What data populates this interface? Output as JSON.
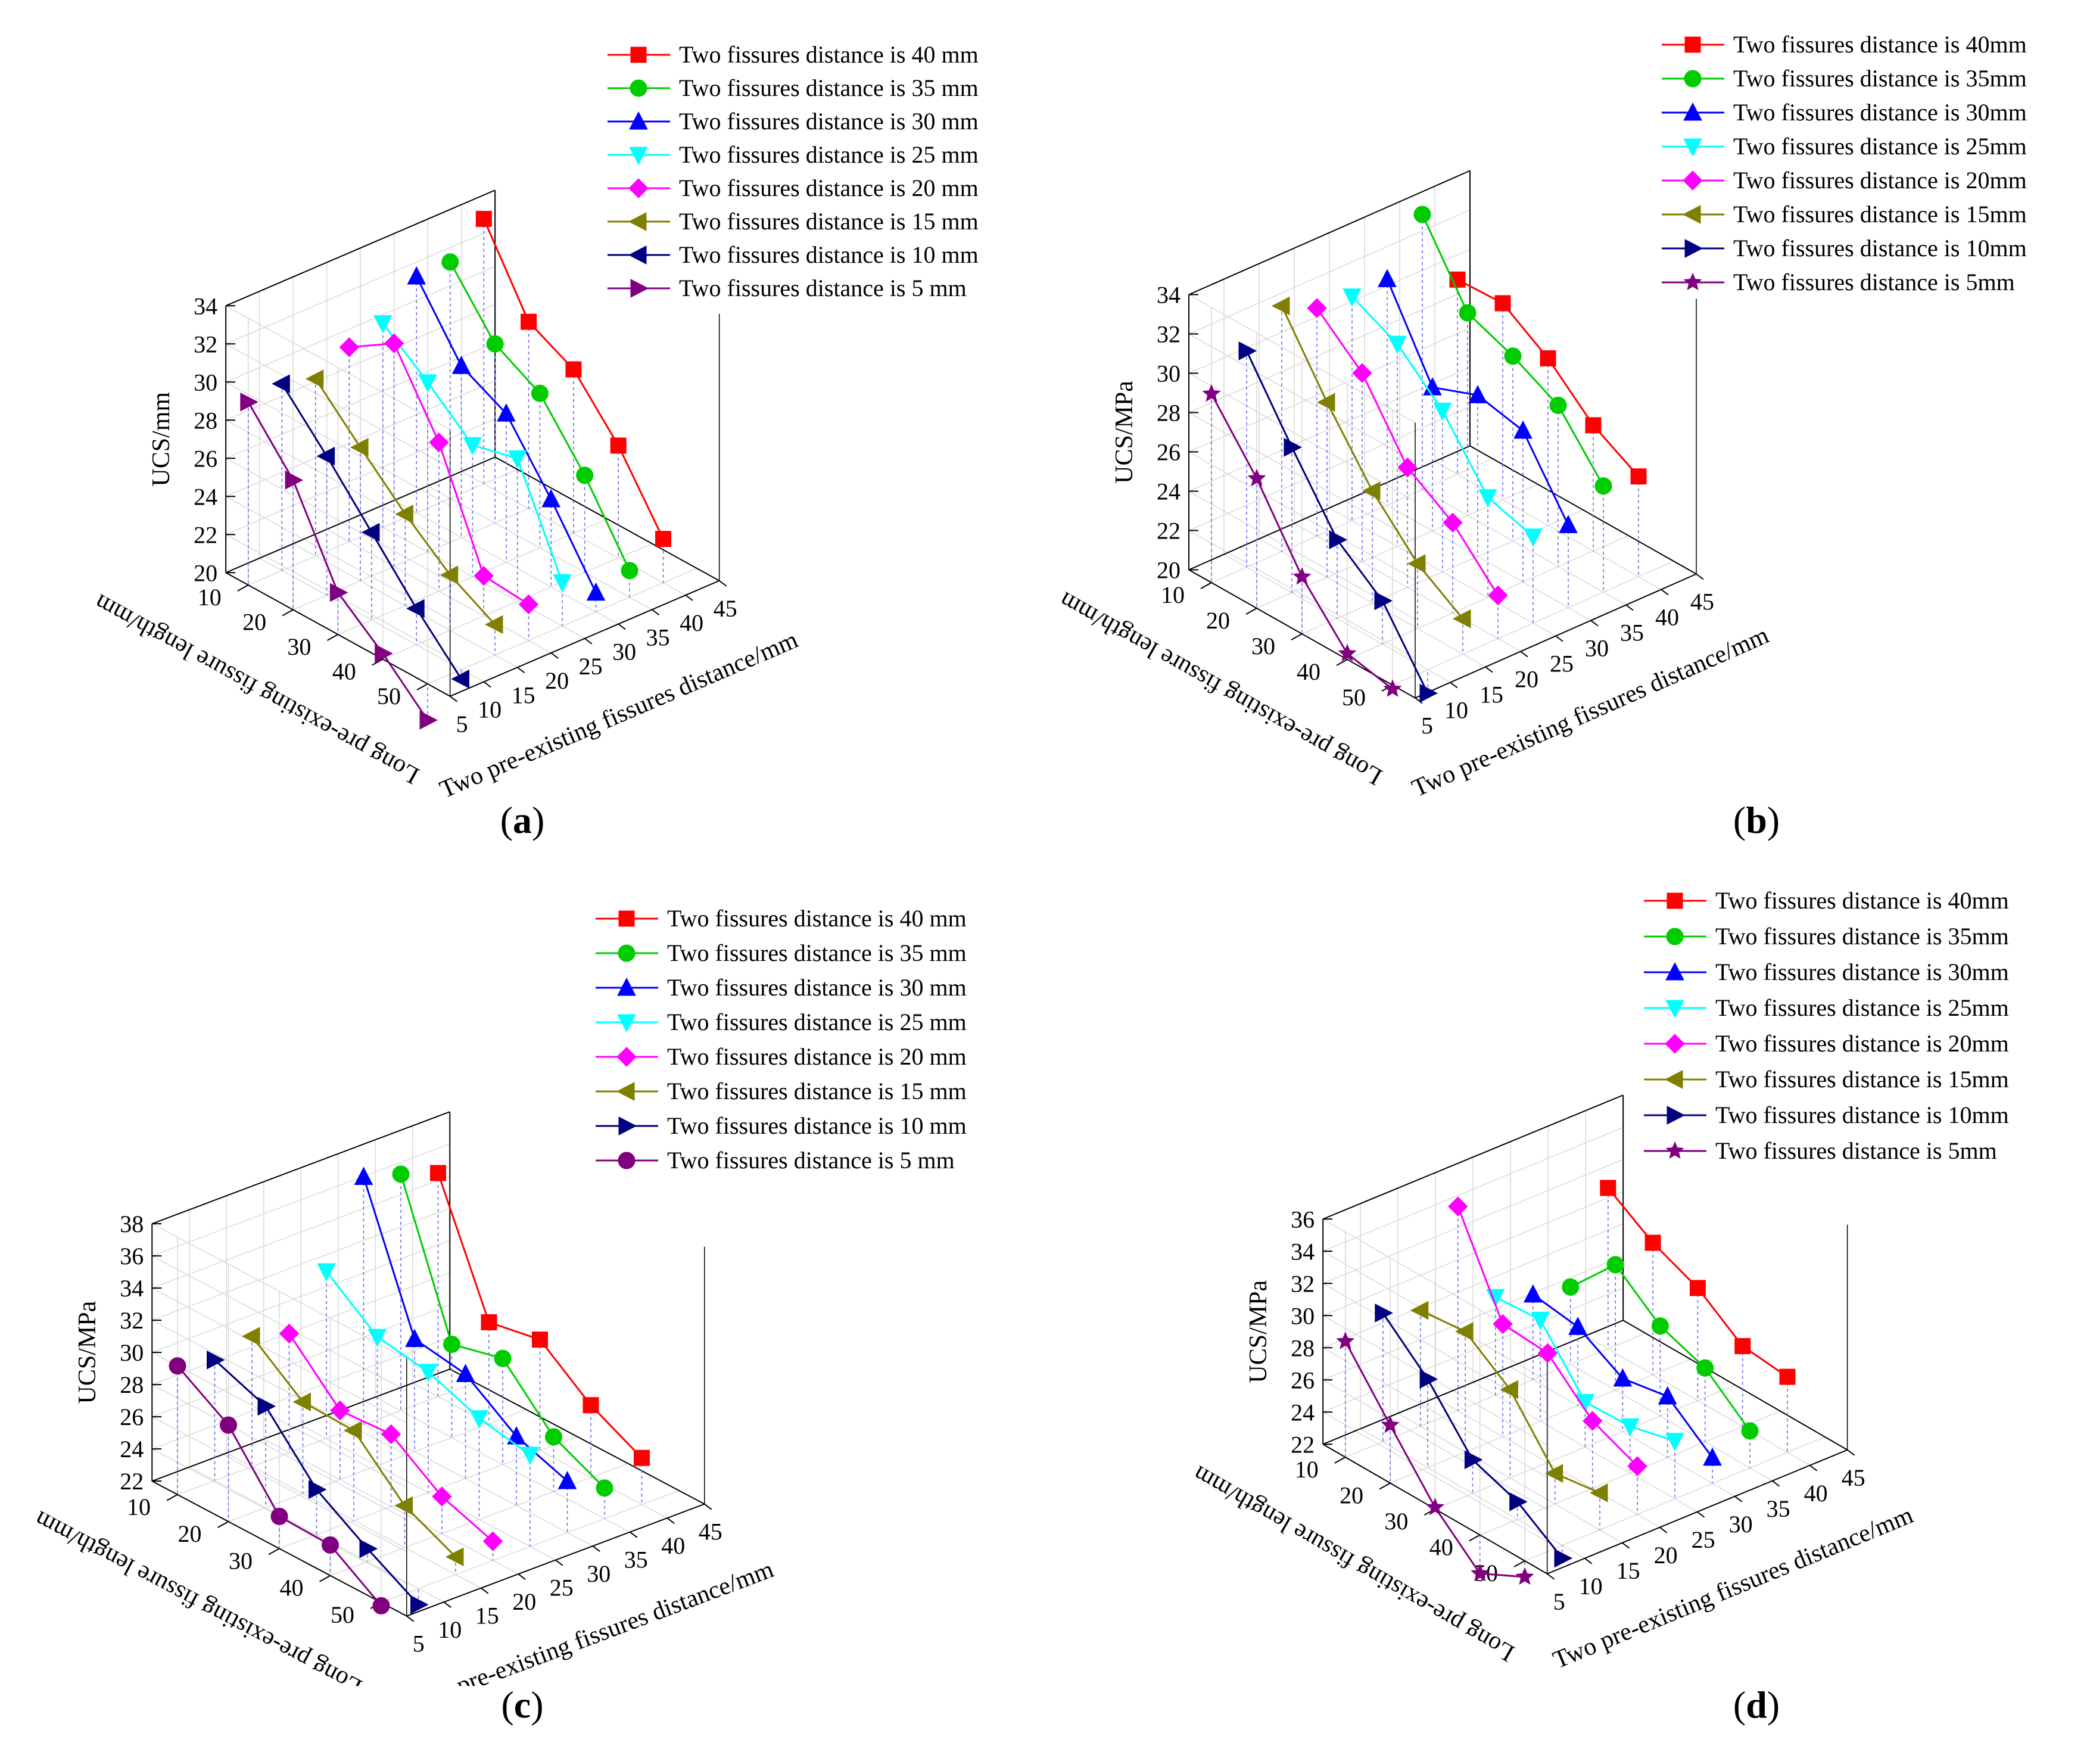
{
  "chart_data": [
    {
      "id": "a",
      "type": "line",
      "caption": "a",
      "zlabel": "UCS/mm",
      "ylabel": "Long pre-existing fissure length/mm",
      "xlabel": "Two pre-existing fissures distance/mm",
      "zlim": [
        20,
        34
      ],
      "zticks": [
        "20",
        "22",
        "24",
        "26",
        "28",
        "30",
        "32",
        "34"
      ],
      "yticks": [
        "10",
        "20",
        "30",
        "40",
        "50"
      ],
      "xticks": [
        "5",
        "10",
        "15",
        "20",
        "25",
        "30",
        "35",
        "40",
        "45"
      ],
      "lengths": [
        10,
        20,
        30,
        40,
        50
      ],
      "series": [
        {
          "name": "Two fissures distance is 40 mm",
          "distance": 40,
          "color": "#ff0000",
          "marker": "square",
          "values": [
            33.9,
            29.8,
            28.6,
            25.9,
            22.3
          ]
        },
        {
          "name": "Two fissures distance is 35 mm",
          "distance": 35,
          "color": "#00cc00",
          "marker": "circle",
          "values": [
            32.4,
            29.4,
            28.1,
            25.1,
            21.4
          ]
        },
        {
          "name": "Two fissures distance is 30 mm",
          "distance": 30,
          "color": "#0000ff",
          "marker": "triangle-up",
          "values": [
            32.4,
            29.0,
            27.8,
            24.6,
            21.0
          ]
        },
        {
          "name": "Two fissures distance is 25 mm",
          "distance": 25,
          "color": "#00ffff",
          "marker": "triangle-down",
          "values": [
            30.7,
            28.9,
            26.9,
            27.5,
            22.3
          ]
        },
        {
          "name": "Two fissures distance is 20 mm",
          "distance": 20,
          "color": "#ff00ff",
          "marker": "diamond",
          "values": [
            30.2,
            31.7,
            27.8,
            22.1,
            21.9
          ]
        },
        {
          "name": "Two fissures distance is 15 mm",
          "distance": 15,
          "color": "#808000",
          "marker": "triangle-left",
          "values": [
            29.3,
            27.0,
            24.8,
            22.9,
            21.6
          ]
        },
        {
          "name": "Two fissures distance is 10 mm",
          "distance": 10,
          "color": "#000080",
          "marker": "triangle-left",
          "values": [
            29.8,
            27.3,
            24.6,
            21.9,
            19.5
          ]
        },
        {
          "name": "Two fissures distance is 5 mm",
          "distance": 5,
          "color": "#800080",
          "marker": "triangle-right",
          "values": [
            29.6,
            26.8,
            22.2,
            20.3,
            18.1
          ]
        }
      ]
    },
    {
      "id": "b",
      "type": "line",
      "caption": "b",
      "zlabel": "UCS/MPa",
      "ylabel": "Long pre-existing fissure length/mm",
      "xlabel": "Two pre-existing fissures distance/mm",
      "zlim": [
        20,
        34
      ],
      "zticks": [
        "20",
        "22",
        "24",
        "26",
        "28",
        "30",
        "32",
        "34"
      ],
      "yticks": [
        "10",
        "20",
        "30",
        "40",
        "50"
      ],
      "xticks": [
        "5",
        "10",
        "15",
        "20",
        "25",
        "30",
        "35",
        "40",
        "45"
      ],
      "lengths": [
        10,
        20,
        30,
        40,
        50
      ],
      "series": [
        {
          "name": "Two fissures distance is 40mm",
          "distance": 40,
          "color": "#ff0000",
          "marker": "square",
          "values": [
            29.9,
            30.0,
            28.5,
            26.4,
            25.1
          ]
        },
        {
          "name": "Two fissures distance is 35mm",
          "distance": 35,
          "color": "#00cc00",
          "marker": "circle",
          "values": [
            34.0,
            30.3,
            29.4,
            28.2,
            25.4
          ]
        },
        {
          "name": "Two fissures distance is 30mm",
          "distance": 30,
          "color": "#0000ff",
          "marker": "triangle-up",
          "values": [
            31.5,
            27.3,
            28.2,
            27.7,
            24.2
          ]
        },
        {
          "name": "Two fissures distance is 25mm",
          "distance": 25,
          "color": "#00ffff",
          "marker": "triangle-down",
          "values": [
            31.4,
            30.3,
            28.2,
            25.1,
            24.4
          ]
        },
        {
          "name": "Two fissures distance is 20mm",
          "distance": 20,
          "color": "#ff00ff",
          "marker": "diamond",
          "values": [
            31.6,
            29.6,
            26.1,
            24.6,
            22.2
          ]
        },
        {
          "name": "Two fissures distance is 15mm",
          "distance": 15,
          "color": "#808000",
          "marker": "triangle-left",
          "values": [
            32.5,
            28.9,
            25.7,
            23.3,
            21.8
          ]
        },
        {
          "name": "Two fissures distance is 10mm",
          "distance": 10,
          "color": "#000080",
          "marker": "triangle-right",
          "values": [
            31.0,
            27.4,
            24.0,
            22.2,
            18.8
          ]
        },
        {
          "name": "Two fissures distance is 5mm",
          "distance": 5,
          "color": "#800080",
          "marker": "star",
          "values": [
            29.6,
            26.6,
            22.9,
            20.3,
            19.8
          ]
        }
      ]
    },
    {
      "id": "c",
      "type": "line",
      "caption": "c",
      "zlabel": "UCS/MPa",
      "ylabel": "Long pre-existing fissure length/mm",
      "xlabel": "Two pre-existing fissures distance/mm",
      "zlim": [
        22,
        38
      ],
      "zticks": [
        "22",
        "24",
        "26",
        "28",
        "30",
        "32",
        "34",
        "36",
        "38"
      ],
      "yticks": [
        "10",
        "20",
        "30",
        "40",
        "50"
      ],
      "xticks": [
        "5",
        "10",
        "15",
        "20",
        "25",
        "30",
        "35",
        "40",
        "45"
      ],
      "lengths": [
        10,
        20,
        30,
        40,
        50
      ],
      "series": [
        {
          "name": "Two fissures distance is 40 mm",
          "distance": 40,
          "color": "#ff0000",
          "marker": "square",
          "values": [
            35.9,
            28.3,
            28.9,
            26.5,
            24.9
          ]
        },
        {
          "name": "Two fissures distance is 35 mm",
          "distance": 35,
          "color": "#00cc00",
          "marker": "circle",
          "values": [
            36.7,
            27.8,
            28.6,
            25.4,
            23.9
          ]
        },
        {
          "name": "Two fissures distance is 30 mm",
          "distance": 30,
          "color": "#0000ff",
          "marker": "triangle-up",
          "values": [
            37.4,
            29.0,
            28.5,
            26.3,
            25.2
          ]
        },
        {
          "name": "Two fissures distance is 25 mm",
          "distance": 25,
          "color": "#00ffff",
          "marker": "triangle-down",
          "values": [
            32.4,
            30.0,
            29.5,
            28.3,
            27.7
          ]
        },
        {
          "name": "Two fissures distance is 20 mm",
          "distance": 20,
          "color": "#ff00ff",
          "marker": "diamond",
          "values": [
            29.4,
            26.3,
            26.5,
            24.3,
            23.2
          ]
        },
        {
          "name": "Two fissures distance is 15 mm",
          "distance": 15,
          "color": "#808000",
          "marker": "triangle-left",
          "values": [
            30.1,
            27.7,
            27.6,
            24.6,
            23.1
          ]
        },
        {
          "name": "Two fissures distance is 10 mm",
          "distance": 10,
          "color": "#000080",
          "marker": "triangle-right",
          "values": [
            29.5,
            28.3,
            24.8,
            22.8,
            21.0
          ]
        },
        {
          "name": "Two fissures distance is 5 mm",
          "distance": 5,
          "color": "#800080",
          "marker": "circle",
          "values": [
            30.0,
            28.0,
            24.0,
            23.9,
            21.8
          ]
        }
      ]
    },
    {
      "id": "d",
      "type": "line",
      "caption": "d",
      "zlabel": "UCS/MPa",
      "ylabel": "Long pre-existing fissure length/mm",
      "xlabel": "Two pre-existing fissures distance/mm",
      "zlim": [
        22,
        36
      ],
      "zticks": [
        "22",
        "24",
        "26",
        "28",
        "30",
        "32",
        "34",
        "36"
      ],
      "yticks": [
        "10",
        "20",
        "30",
        "40",
        "50"
      ],
      "xticks": [
        "5",
        "10",
        "15",
        "20",
        "25",
        "30",
        "35",
        "40",
        "45"
      ],
      "lengths": [
        10,
        20,
        30,
        40,
        50
      ],
      "series": [
        {
          "name": "Two fissures distance is 40mm",
          "distance": 40,
          "color": "#ff0000",
          "marker": "square",
          "values": [
            32.0,
            30.2,
            29.0,
            27.0,
            26.7
          ]
        },
        {
          "name": "Two fissures distance is 35mm",
          "distance": 35,
          "color": "#00cc00",
          "marker": "circle",
          "values": [
            26.8,
            29.8,
            27.6,
            26.6,
            24.3
          ]
        },
        {
          "name": "Two fissures distance is 30mm",
          "distance": 30,
          "color": "#0000ff",
          "marker": "triangle-up",
          "values": [
            27.3,
            26.9,
            25.3,
            25.8,
            23.6
          ]
        },
        {
          "name": "Two fissures distance is 25mm",
          "distance": 25,
          "color": "#00ffff",
          "marker": "triangle-down",
          "values": [
            28.1,
            28.3,
            24.8,
            24.9,
            25.6
          ]
        },
        {
          "name": "Two fissures distance is 20mm",
          "distance": 20,
          "color": "#ff00ff",
          "marker": "diamond",
          "values": [
            34.7,
            29.0,
            28.8,
            26.2,
            25.0
          ]
        },
        {
          "name": "Two fissures distance is 15mm",
          "distance": 15,
          "color": "#808000",
          "marker": "triangle-left",
          "values": [
            29.2,
            29.5,
            27.5,
            23.9,
            24.3
          ]
        },
        {
          "name": "Two fissures distance is 10mm",
          "distance": 10,
          "color": "#000080",
          "marker": "triangle-right",
          "values": [
            30.0,
            27.5,
            24.1,
            23.1,
            21.2
          ]
        },
        {
          "name": "Two fissures distance is 5mm",
          "distance": 5,
          "color": "#800080",
          "marker": "star",
          "values": [
            29.2,
            25.6,
            22.1,
            19.6,
            21.0
          ]
        }
      ]
    }
  ]
}
